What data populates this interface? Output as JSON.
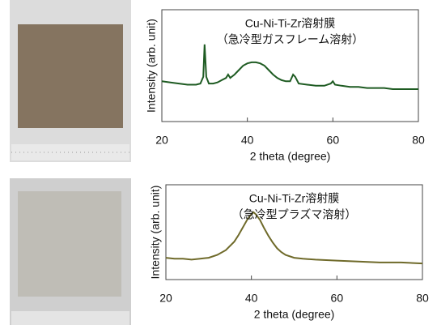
{
  "chart_data": [
    {
      "type": "line",
      "title": "Cu-Ni-Ti-Zr溶射膜",
      "subtitle": "（急冷型ガスフレーム溶射）",
      "xlabel": "2 theta (degree)",
      "ylabel": "Intensity (arb. unit)",
      "x": [
        20,
        22,
        24,
        26,
        28,
        29,
        29.7,
        30,
        30.4,
        31,
        32,
        33,
        34,
        35,
        35.5,
        36,
        37,
        38,
        39,
        40,
        41,
        42,
        43,
        44,
        45,
        46,
        47,
        48,
        49,
        50,
        50.7,
        51.2,
        52,
        54,
        56,
        58,
        59.5,
        60,
        60.5,
        62,
        64,
        66,
        68,
        70,
        72,
        74,
        76,
        78,
        80
      ],
      "series": [
        {
          "name": "Cu-Ni-Ti-Zr溶射膜",
          "color": "#1e5b22",
          "values": [
            36,
            35,
            34,
            33,
            33,
            34,
            40,
            69,
            40,
            34,
            34,
            35,
            37,
            39,
            42,
            39,
            42,
            46,
            50,
            52,
            53,
            53,
            52,
            50,
            46,
            42,
            39,
            37,
            36,
            36,
            42,
            40,
            34,
            33,
            32,
            32,
            34,
            36,
            33,
            32,
            31,
            31,
            30,
            30,
            30,
            29,
            29,
            29,
            29
          ]
        }
      ],
      "xlim": [
        20,
        80
      ],
      "xticks": [
        20,
        40,
        60,
        80
      ],
      "ylim": [
        0,
        100
      ]
    },
    {
      "type": "line",
      "title": "Cu-Ni-Ti-Zr溶射膜",
      "subtitle": "（急冷型プラズマ溶射）",
      "xlabel": "2 theta (degree)",
      "ylabel": "Intensity (arb. unit)",
      "x": [
        20,
        22,
        24,
        26,
        28,
        30,
        32,
        34,
        36,
        37,
        38,
        39,
        40,
        40.5,
        41,
        42,
        43,
        44,
        45,
        46,
        47,
        48,
        50,
        52,
        55,
        60,
        65,
        70,
        75,
        80
      ],
      "series": [
        {
          "name": "Cu-Ni-Ti-Zr溶射膜",
          "color": "#6f6a2a",
          "values": [
            23,
            22,
            22,
            21,
            22,
            23,
            26,
            31,
            40,
            47,
            55,
            63,
            69,
            71,
            69,
            63,
            54,
            46,
            39,
            33,
            29,
            26,
            23,
            22,
            21,
            20,
            19,
            18,
            18,
            17
          ]
        }
      ],
      "xlim": [
        20,
        80
      ],
      "xticks": [
        20,
        40,
        60,
        80
      ],
      "ylim": [
        0,
        100
      ]
    }
  ]
}
